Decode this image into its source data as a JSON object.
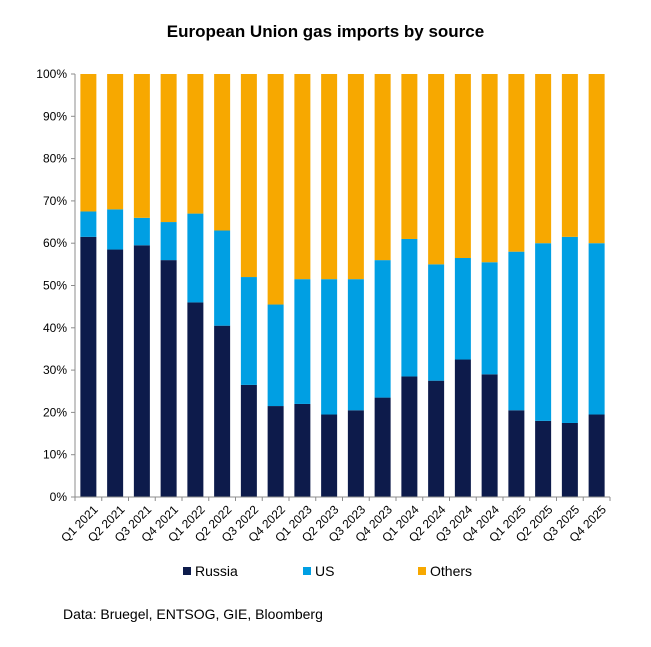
{
  "source_note": "Data: Bruegel, ENTSOG, GIE, Bloomberg",
  "chart_data": {
    "type": "bar",
    "stacked": true,
    "percent": true,
    "title": "European Union gas imports by source",
    "xlabel": "",
    "ylabel": "",
    "ylim": [
      0,
      100
    ],
    "yticks": [
      "0%",
      "10%",
      "20%",
      "30%",
      "40%",
      "50%",
      "60%",
      "70%",
      "80%",
      "90%",
      "100%"
    ],
    "categories": [
      "Q1 2021",
      "Q2 2021",
      "Q3 2021",
      "Q4 2021",
      "Q1 2022",
      "Q2 2022",
      "Q3 2022",
      "Q4 2022",
      "Q1 2023",
      "Q2 2023",
      "Q3 2023",
      "Q4 2023",
      "Q1 2024",
      "Q2 2024",
      "Q3 2024",
      "Q4 2024",
      "Q1 2025",
      "Q2 2025",
      "Q3 2025",
      "Q4 2025"
    ],
    "series": [
      {
        "name": "Russia",
        "color": "#0d1b4b",
        "values": [
          61.5,
          58.5,
          59.5,
          56,
          46,
          40.5,
          26.5,
          21.5,
          22,
          19.5,
          20.5,
          23.5,
          28.5,
          27.5,
          32.5,
          29,
          20.5,
          18,
          17.5,
          19.5
        ]
      },
      {
        "name": "US",
        "color": "#009fe3",
        "values": [
          6,
          9.5,
          6.5,
          9,
          21,
          22.5,
          25.5,
          24,
          29.5,
          32,
          31,
          32.5,
          32.5,
          27.5,
          24,
          26.5,
          37.5,
          42,
          44,
          40.5
        ]
      },
      {
        "name": "Others",
        "color": "#f7a800",
        "values": [
          32.5,
          32,
          34,
          35,
          33,
          37,
          48,
          54.5,
          48.5,
          48.5,
          48.5,
          44,
          39,
          45,
          43.5,
          44.5,
          42,
          40,
          38.5,
          40
        ]
      }
    ],
    "grid": false,
    "legend_position": "bottom"
  }
}
